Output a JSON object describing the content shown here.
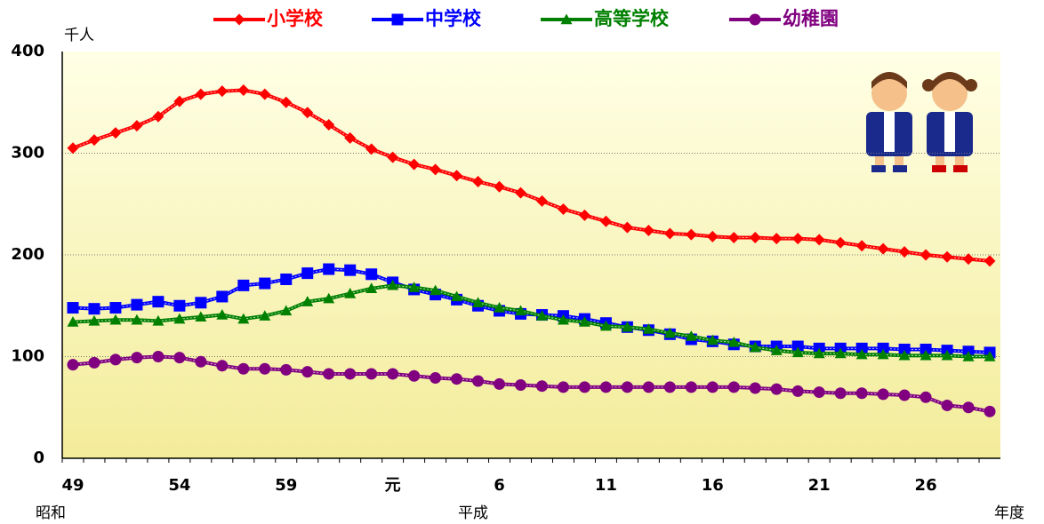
{
  "chart_data": {
    "type": "line",
    "y_unit": "千人",
    "x_label": "年度",
    "era_labels": [
      "昭和",
      "平成"
    ],
    "categories": [
      "49",
      null,
      null,
      null,
      null,
      "54",
      null,
      null,
      null,
      null,
      "59",
      null,
      null,
      null,
      null,
      "元",
      null,
      null,
      null,
      null,
      "6",
      null,
      null,
      null,
      null,
      "11",
      null,
      null,
      null,
      null,
      "16",
      null,
      null,
      null,
      null,
      "21",
      null,
      null,
      null,
      null,
      "26",
      null,
      null,
      null
    ],
    "ylim": [
      0,
      400
    ],
    "yticks": [
      0,
      100,
      200,
      300,
      400
    ],
    "grid": true,
    "series": [
      {
        "name": "小学校",
        "color": "#ff0000",
        "marker": "diamond",
        "values": [
          305,
          313,
          320,
          327,
          336,
          351,
          358,
          361,
          362,
          358,
          350,
          340,
          328,
          315,
          304,
          296,
          289,
          284,
          278,
          272,
          267,
          261,
          253,
          245,
          239,
          233,
          227,
          224,
          221,
          220,
          218,
          217,
          217,
          216,
          216,
          215,
          212,
          209,
          206,
          203,
          200,
          198,
          196,
          194
        ]
      },
      {
        "name": "中学校",
        "color": "#0000ff",
        "marker": "square",
        "values": [
          148,
          147,
          148,
          151,
          154,
          150,
          153,
          159,
          170,
          172,
          176,
          182,
          186,
          185,
          181,
          173,
          166,
          161,
          156,
          150,
          145,
          142,
          141,
          140,
          137,
          133,
          129,
          126,
          122,
          117,
          115,
          112,
          110,
          110,
          110,
          108,
          108,
          108,
          108,
          107,
          107,
          106,
          105,
          104
        ]
      },
      {
        "name": "高等学校",
        "color": "#008000",
        "marker": "triangle",
        "values": [
          134,
          135,
          136,
          136,
          135,
          137,
          139,
          141,
          137,
          140,
          145,
          154,
          157,
          162,
          167,
          170,
          168,
          165,
          159,
          153,
          148,
          145,
          140,
          136,
          134,
          130,
          129,
          127,
          123,
          120,
          116,
          114,
          109,
          106,
          104,
          103,
          103,
          102,
          102,
          101,
          101,
          101,
          100,
          100
        ]
      },
      {
        "name": "幼稚園",
        "color": "#800080",
        "marker": "circle",
        "values": [
          92,
          94,
          97,
          99,
          100,
          99,
          95,
          91,
          88,
          88,
          87,
          85,
          83,
          83,
          83,
          83,
          81,
          79,
          78,
          76,
          73,
          72,
          71,
          70,
          70,
          70,
          70,
          70,
          70,
          70,
          70,
          70,
          69,
          68,
          66,
          65,
          64,
          64,
          63,
          62,
          60,
          52,
          50,
          46
        ]
      }
    ]
  }
}
